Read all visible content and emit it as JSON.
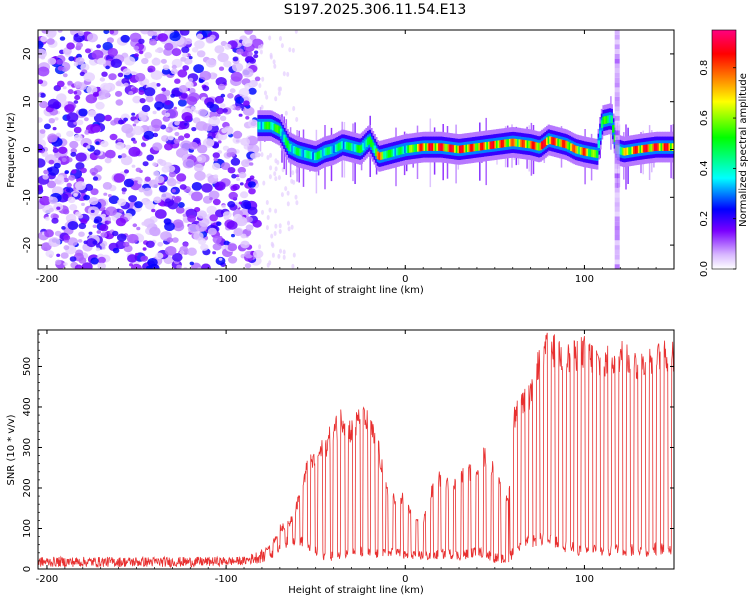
{
  "title": "S197.2025.306.11.54.E13",
  "chart_data": [
    {
      "type": "heatmap",
      "name": "spectrogram",
      "xlabel": "Height of straight line (km)",
      "ylabel": "Frequency (Hz)",
      "xlim": [
        -205,
        150
      ],
      "ylim": [
        -25,
        25
      ],
      "xticks": [
        -200,
        -100,
        0,
        100
      ],
      "xtick_labels": [
        "-200",
        "-100",
        "0",
        "100"
      ],
      "yticks": [
        -20,
        -10,
        0,
        10,
        20
      ],
      "ytick_labels": [
        "-20",
        "-10",
        "0",
        "10",
        "20"
      ],
      "colorbar": {
        "label": "Normalized spectral amplitude",
        "range": [
          0,
          0.95
        ],
        "ticks": [
          0.0,
          0.2,
          0.4,
          0.6,
          0.8
        ],
        "tick_labels": [
          "0.0",
          "0.2",
          "0.4",
          "0.6",
          "0.8"
        ],
        "colors": [
          "#ffffff",
          "#d8b8ff",
          "#7a00ff",
          "#0000ff",
          "#00ffff",
          "#00ff00",
          "#ffff00",
          "#ff8000",
          "#ff0000",
          "#ff0080"
        ]
      },
      "noise_region_x": [
        -205,
        -82
      ],
      "ridge": {
        "x": [
          -82,
          -75,
          -70,
          -65,
          -60,
          -55,
          -50,
          -45,
          -40,
          -35,
          -30,
          -25,
          -20,
          -15,
          -10,
          -5,
          0,
          10,
          20,
          30,
          40,
          50,
          60,
          70,
          75,
          80,
          85,
          90,
          95,
          100,
          107,
          110,
          115,
          118,
          122,
          130,
          140,
          150
        ],
        "y": [
          5,
          5,
          4,
          0.5,
          -0.5,
          -1,
          -1.5,
          -0.5,
          0,
          1,
          0.5,
          0,
          2,
          -1.5,
          -1,
          -0.5,
          0,
          0.5,
          0.5,
          0,
          0.5,
          1,
          1.5,
          1,
          0.5,
          2,
          1.5,
          1,
          0,
          -0.5,
          -1,
          6,
          6.5,
          0,
          -0.5,
          0,
          0.5,
          0.5
        ],
        "peak_amplitude": [
          0.45,
          0.6,
          0.55,
          0.5,
          0.5,
          0.45,
          0.5,
          0.5,
          0.45,
          0.5,
          0.5,
          0.55,
          0.5,
          0.85,
          0.55,
          0.5,
          0.5,
          0.9,
          0.9,
          0.9,
          0.85,
          0.9,
          0.8,
          0.85,
          0.9,
          0.9,
          0.85,
          0.85,
          0.8,
          0.85,
          0.55,
          0.55,
          0.6,
          0.5,
          0.7,
          0.9,
          0.9,
          0.9
        ]
      }
    },
    {
      "type": "line",
      "name": "snr",
      "xlabel": "Height of straight line (km)",
      "ylabel": "SNR (10 * v/v)",
      "xlim": [
        -205,
        150
      ],
      "ylim": [
        0,
        590
      ],
      "xticks": [
        -200,
        -100,
        0,
        100
      ],
      "xtick_labels": [
        "-200",
        "-100",
        "0",
        "100"
      ],
      "yticks": [
        0,
        100,
        200,
        300,
        400,
        500
      ],
      "ytick_labels": [
        "0",
        "100",
        "200",
        "300",
        "400",
        "500"
      ],
      "color": "#e83030",
      "envelope": {
        "x": [
          -205,
          -180,
          -150,
          -120,
          -100,
          -90,
          -80,
          -75,
          -70,
          -65,
          -60,
          -55,
          -50,
          -45,
          -40,
          -35,
          -30,
          -25,
          -20,
          -15,
          -10,
          -5,
          0,
          5,
          10,
          15,
          20,
          25,
          30,
          35,
          40,
          45,
          50,
          55,
          58,
          60,
          65,
          70,
          75,
          80,
          85,
          90,
          95,
          100,
          105,
          110,
          115,
          120,
          125,
          130,
          135,
          140,
          150
        ],
        "low": [
          5,
          5,
          5,
          5,
          8,
          10,
          15,
          25,
          35,
          60,
          60,
          50,
          30,
          20,
          20,
          25,
          30,
          30,
          25,
          25,
          25,
          30,
          20,
          25,
          20,
          20,
          25,
          25,
          20,
          25,
          30,
          25,
          15,
          10,
          10,
          30,
          50,
          50,
          60,
          55,
          50,
          40,
          35,
          30,
          35,
          30,
          30,
          35,
          30,
          35,
          30,
          35,
          35
        ],
        "high": [
          30,
          30,
          30,
          30,
          30,
          30,
          50,
          60,
          110,
          120,
          180,
          270,
          300,
          330,
          370,
          410,
          370,
          410,
          390,
          320,
          220,
          190,
          190,
          120,
          130,
          210,
          250,
          230,
          250,
          260,
          280,
          310,
          260,
          190,
          200,
          400,
          440,
          460,
          560,
          590,
          580,
          560,
          570,
          580,
          560,
          540,
          560,
          570,
          560,
          540,
          550,
          560,
          570
        ]
      }
    }
  ]
}
